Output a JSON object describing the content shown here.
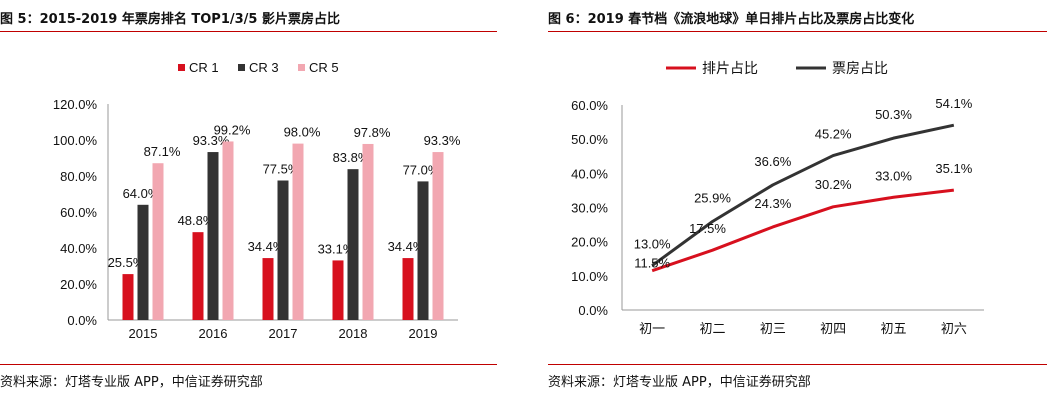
{
  "figures": [
    {
      "title": "图 5：2015-2019 年票房排名 TOP1/3/5 影片票房占比",
      "source": "资料来源：灯塔专业版 APP，中信证券研究部",
      "accent": "#c00000"
    },
    {
      "title": "图 6：2019 春节档《流浪地球》单日排片占比及票房占比变化",
      "source": "资料来源：灯塔专业版 APP，中信证券研究部",
      "accent": "#c00000"
    }
  ],
  "chart_data": [
    {
      "type": "bar",
      "categories": [
        "2015",
        "2016",
        "2017",
        "2018",
        "2019"
      ],
      "series": [
        {
          "name": "CR 1",
          "color": "#d7101e",
          "values": [
            25.5,
            48.8,
            34.4,
            33.1,
            34.4
          ],
          "labels": [
            "25.5%",
            "48.8%",
            "34.4%",
            "33.1%",
            "34.4%"
          ]
        },
        {
          "name": "CR 3",
          "color": "#333333",
          "values": [
            64.0,
            93.3,
            77.5,
            83.8,
            77.0
          ],
          "labels": [
            "64.0%",
            "93.3%",
            "77.5%",
            "83.8%",
            "77.0%"
          ]
        },
        {
          "name": "CR 5",
          "color": "#f2a7b1",
          "values": [
            87.1,
            99.2,
            98.0,
            97.8,
            93.3
          ],
          "labels": [
            "87.1%",
            "99.2%",
            "98.0%",
            "97.8%",
            "93.3%"
          ]
        }
      ],
      "ylim": [
        0,
        120
      ],
      "yticks": [
        "0.0%",
        "20.0%",
        "40.0%",
        "60.0%",
        "80.0%",
        "100.0%",
        "120.0%"
      ],
      "legend": "top-center",
      "grid": false
    },
    {
      "type": "line",
      "categories": [
        "初一",
        "初二",
        "初三",
        "初四",
        "初五",
        "初六"
      ],
      "series": [
        {
          "name": "排片占比",
          "color": "#d7101e",
          "values": [
            11.5,
            17.5,
            24.3,
            30.2,
            33.0,
            35.1
          ],
          "labels": [
            "11.5%",
            "17.5%",
            "24.3%",
            "30.2%",
            "33.0%",
            "35.1%"
          ]
        },
        {
          "name": "票房占比",
          "color": "#333333",
          "values": [
            13.0,
            25.9,
            36.6,
            45.2,
            50.3,
            54.1
          ],
          "labels": [
            "13.0%",
            "25.9%",
            "36.6%",
            "45.2%",
            "50.3%",
            "54.1%"
          ]
        }
      ],
      "ylim": [
        0,
        60
      ],
      "yticks": [
        "0.0%",
        "10.0%",
        "20.0%",
        "30.0%",
        "40.0%",
        "50.0%",
        "60.0%"
      ],
      "legend": "top-center",
      "grid": false
    }
  ]
}
